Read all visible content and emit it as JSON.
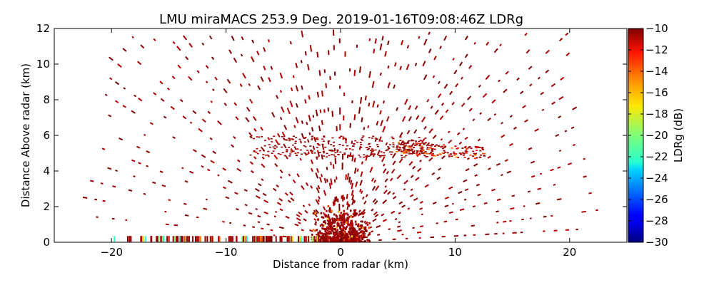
{
  "chart_data": {
    "type": "heatmap",
    "title": "LMU miraMACS 253.9 Deg. 2019-01-16T09:08:46Z  LDRg",
    "xlabel": "Distance from radar (km)",
    "ylabel": "Distance Above radar  (km)",
    "xlim": [
      -25,
      25
    ],
    "ylim": [
      0,
      12
    ],
    "x_ticks": [
      -20,
      -10,
      0,
      10,
      20
    ],
    "x_tick_labels": [
      "−20",
      "−10",
      "0",
      "10",
      "20"
    ],
    "y_ticks": [
      0,
      2,
      4,
      6,
      8,
      10,
      12
    ],
    "y_tick_labels": [
      "0",
      "2",
      "4",
      "6",
      "8",
      "10",
      "12"
    ],
    "grid": false,
    "colorbar": {
      "label": "LDRg (dB)",
      "range": [
        -30,
        -10
      ],
      "ticks": [
        -10,
        -12,
        -14,
        -16,
        -18,
        -20,
        -22,
        -24,
        -26,
        -28,
        -30
      ],
      "tick_labels": [
        "−10",
        "−12",
        "−14",
        "−16",
        "−18",
        "−20",
        "−22",
        "−24",
        "−26",
        "−28",
        "−30"
      ],
      "colormap": "jet"
    },
    "colors": {
      "dominant_return": "#8b0000",
      "background": "#ffffff"
    },
    "features": [
      {
        "kind": "dense_echo",
        "x": [
          -3,
          3
        ],
        "y": [
          0,
          2
        ]
      },
      {
        "kind": "scan_arcs",
        "x": [
          -22,
          22
        ],
        "y": [
          0,
          11.5
        ]
      },
      {
        "kind": "melting_layer_band",
        "x": [
          5,
          12
        ],
        "y": [
          5.0,
          5.6
        ],
        "ldr_db": -12
      }
    ]
  }
}
